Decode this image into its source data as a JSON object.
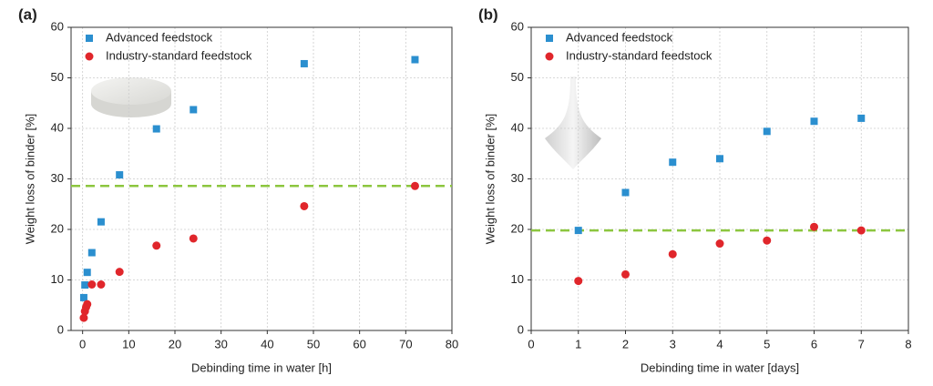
{
  "chart_data": [
    {
      "type": "scatter",
      "panel_label": "(a)",
      "x_label": "Debinding time in water [h]",
      "y_label": "Weight loss of binder [%]",
      "xlim": [
        -2.5,
        80
      ],
      "xticks": [
        0,
        10,
        20,
        30,
        40,
        50,
        60,
        70,
        80
      ],
      "ylim": [
        0,
        60
      ],
      "yticks": [
        0,
        10,
        20,
        30,
        40,
        50,
        60
      ],
      "grid": true,
      "legend": "upper left",
      "reference_line": {
        "value": 28.6,
        "color": "#8cc63f"
      },
      "series": [
        {
          "name": "Advanced feedstock",
          "color": "#2b8fcf",
          "marker": "square",
          "x": [
            0.25,
            0.5,
            1,
            2,
            4,
            8,
            16,
            24,
            48,
            72
          ],
          "values": [
            6.5,
            9,
            11.5,
            15.4,
            21.5,
            30.8,
            39.9,
            43.7,
            52.8,
            53.6
          ]
        },
        {
          "name": "Industry-standard feedstock",
          "color": "#e0262b",
          "marker": "circle",
          "x": [
            0.25,
            0.5,
            0.75,
            1,
            2,
            4,
            8,
            16,
            24,
            48,
            72
          ],
          "values": [
            2.5,
            3.8,
            4.6,
            5.2,
            9.1,
            9.1,
            11.6,
            16.8,
            18.2,
            24.6,
            28.6
          ]
        }
      ]
    },
    {
      "type": "scatter",
      "panel_label": "(b)",
      "x_label": "Debinding time in water [days]",
      "y_label": "Weight loss of binder [%]",
      "xlim": [
        0,
        8
      ],
      "xticks": [
        0,
        1,
        2,
        3,
        4,
        5,
        6,
        7,
        8
      ],
      "ylim": [
        0,
        60
      ],
      "yticks": [
        0,
        10,
        20,
        30,
        40,
        50,
        60
      ],
      "grid": true,
      "legend": "upper left",
      "reference_line": {
        "value": 19.8,
        "color": "#8cc63f"
      },
      "series": [
        {
          "name": "Advanced feedstock",
          "color": "#2b8fcf",
          "marker": "square",
          "x": [
            1,
            2,
            3,
            4,
            5,
            6,
            7
          ],
          "values": [
            19.8,
            27.3,
            33.3,
            34,
            39.4,
            41.4,
            42
          ]
        },
        {
          "name": "Industry-standard feedstock",
          "color": "#e0262b",
          "marker": "circle",
          "x": [
            1,
            2,
            3,
            4,
            5,
            6,
            7
          ],
          "values": [
            9.8,
            11.1,
            15.1,
            17.2,
            17.8,
            20.5,
            19.8
          ]
        }
      ]
    }
  ]
}
